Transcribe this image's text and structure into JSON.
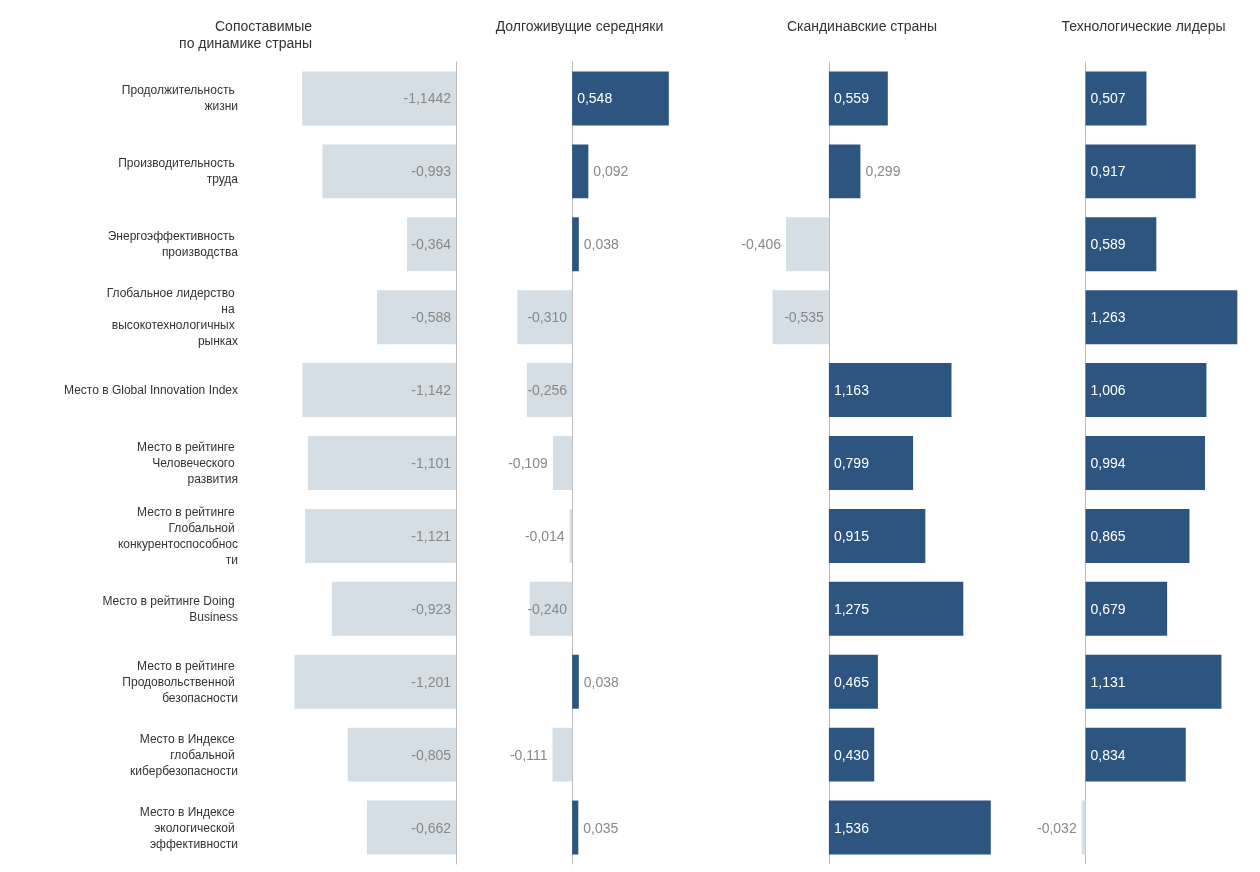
{
  "chart_data": [
    {
      "type": "bar",
      "orientation": "horizontal",
      "title": "Сопоставимые\nпо динамике страны",
      "tick_labels": "y",
      "categories": [
        "Продолжительность жизни",
        "Производительность труда",
        "Энергоэффективность производства",
        "Глобальное лидерство на высокотехнологичных рынках",
        "Место в Global Innovation Index",
        "Место в рейтинге Человеческого развития",
        "Место в рейтинге Глобальной конкурентоспособности",
        "Место в рейтинге Doing Business",
        "Место в рейтинге Продовольственной безопасности",
        "Место в Индексе глобальной кибербезопасности",
        "Место в Индексе экологической эффективности"
      ],
      "values": [
        -1.1442,
        -0.993,
        -0.364,
        -0.588,
        -1.142,
        -1.101,
        -1.121,
        -0.923,
        -1.201,
        -0.805,
        -0.662
      ],
      "value_labels": [
        "-1,1442",
        "-0,993",
        "-0,364",
        "-0,588",
        "-1,142",
        "-1,101",
        "-1,121",
        "-0,923",
        "-1,201",
        "-0,805",
        "-0,662"
      ],
      "colors": [
        "#d5dee4",
        "#d5dee4",
        "#d5dee4",
        "#d5dee4",
        "#d5dee4",
        "#d5dee4",
        "#d5dee4",
        "#d5dee4",
        "#d5dee4",
        "#d5dee4",
        "#d5dee4"
      ]
    },
    {
      "type": "bar",
      "orientation": "horizontal",
      "title": "Долгоживущие середняки",
      "tick_labels": false,
      "categories": [
        "Продолжительность жизни",
        "Производительность труда",
        "Энергоэффективность производства",
        "Глобальное лидерство на высокотехнологичных рынках",
        "Место в Global Innovation Index",
        "Место в рейтинге Человеческого развития",
        "Место в рейтинге Глобальной конкурентоспособности",
        "Место в рейтинге Doing Business",
        "Место в рейтинге Продовольственной безопасности",
        "Место в Индексе глобальной кибербезопасности",
        "Место в Индексе экологической эффективности"
      ],
      "values": [
        0.548,
        0.092,
        0.038,
        -0.31,
        -0.256,
        -0.109,
        -0.014,
        -0.24,
        0.038,
        -0.111,
        0.035
      ],
      "value_labels": [
        "0,548",
        "0,092",
        "0,038",
        "-0,310",
        "-0,256",
        "-0,109",
        "-0,014",
        "-0,240",
        "0,038",
        "-0,111",
        "0,035"
      ],
      "colors": [
        "#2d5580",
        "#2d5580",
        "#2d5580",
        "#d5dee4",
        "#d5dee4",
        "#d5dee4",
        "#d5dee4",
        "#d5dee4",
        "#2d5580",
        "#d5dee4",
        "#2d5580"
      ]
    },
    {
      "type": "bar",
      "orientation": "horizontal",
      "title": "Скандинавские страны",
      "tick_labels": false,
      "categories": [
        "Продолжительность жизни",
        "Производительность труда",
        "Энергоэффективность производства",
        "Глобальное лидерство на высокотехнологичных рынках",
        "Место в Global Innovation Index",
        "Место в рейтинге Человеческого развития",
        "Место в рейтинге Глобальной конкурентоспособности",
        "Место в рейтинге Doing Business",
        "Место в рейтинге Продовольственной безопасности",
        "Место в Индексе глобальной кибербезопасности",
        "Место в Индексе экологической эффективности"
      ],
      "values": [
        0.559,
        0.299,
        -0.406,
        -0.535,
        1.163,
        0.799,
        0.915,
        1.275,
        0.465,
        0.43,
        1.536
      ],
      "value_labels": [
        "0,559",
        "0,299",
        "-0,406",
        "-0,535",
        "1,163",
        "0,799",
        "0,915",
        "1,275",
        "0,465",
        "0,430",
        "1,536"
      ],
      "colors": [
        "#2d5580",
        "#2d5580",
        "#d5dee4",
        "#d5dee4",
        "#2d5580",
        "#2d5580",
        "#2d5580",
        "#2d5580",
        "#2d5580",
        "#2d5580",
        "#2d5580"
      ]
    },
    {
      "type": "bar",
      "orientation": "horizontal",
      "title": "Технологические лидеры",
      "tick_labels": false,
      "categories": [
        "Продолжительность жизни",
        "Производительность труда",
        "Энергоэффективность производства",
        "Глобальное лидерство на высокотехнологичных рынках",
        "Место в Global Innovation Index",
        "Место в рейтинге Человеческого развития",
        "Место в рейтинге Глобальной конкурентоспособности",
        "Место в рейтинге Doing Business",
        "Место в рейтинге Продовольственной безопасности",
        "Место в Индексе глобальной кибербезопасности",
        "Место в Индексе экологической эффективности"
      ],
      "values": [
        0.507,
        0.917,
        0.589,
        1.263,
        1.006,
        0.994,
        0.865,
        0.679,
        1.131,
        0.834,
        -0.032
      ],
      "value_labels": [
        "0,507",
        "0,917",
        "0,589",
        "1,263",
        "1,006",
        "0,994",
        "0,865",
        "0,679",
        "1,131",
        "0,834",
        "-0,032"
      ],
      "colors": [
        "#2d5580",
        "#2d5580",
        "#2d5580",
        "#2d5580",
        "#2d5580",
        "#2d5580",
        "#2d5580",
        "#2d5580",
        "#2d5580",
        "#2d5580",
        "#d5dee4"
      ]
    }
  ]
}
